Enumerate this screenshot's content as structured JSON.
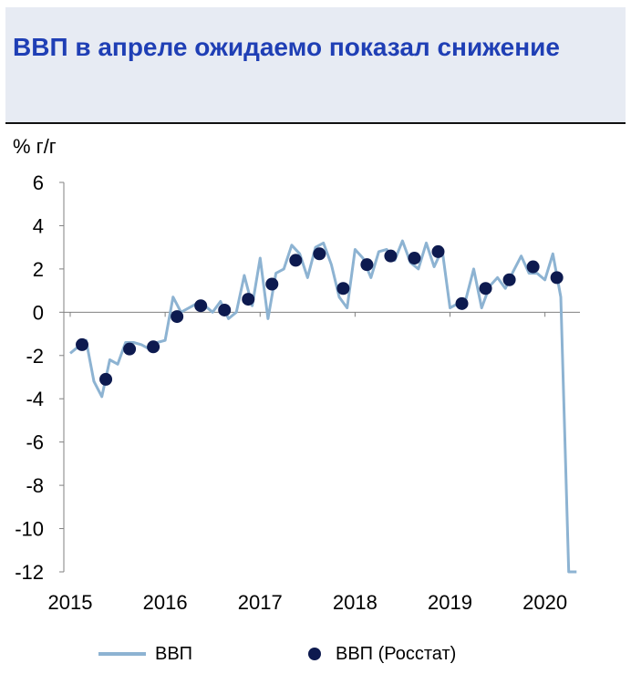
{
  "title": "ВВП в апреле ожидаемо показал снижение",
  "colors": {
    "header_bg": "#e7ebf3",
    "title": "#1f3fb5",
    "line": "#8db3d2",
    "dots": "#0d1a4f"
  },
  "chart_data": {
    "type": "line",
    "ylabel": "% г/г",
    "ylim": [
      -12,
      6
    ],
    "y_ticks": [
      6,
      4,
      2,
      0,
      -2,
      -4,
      -6,
      -8,
      -10,
      -12
    ],
    "x_range": [
      2015.0,
      2020.33
    ],
    "x_ticks": [
      "2015",
      "2016",
      "2017",
      "2018",
      "2019",
      "2020"
    ],
    "grid": false,
    "legend_position": "bottom",
    "series": [
      {
        "name": "ВВП",
        "kind": "line",
        "x": [
          2015.0,
          2015.083,
          2015.167,
          2015.25,
          2015.333,
          2015.417,
          2015.5,
          2015.583,
          2015.667,
          2015.75,
          2015.833,
          2015.917,
          2016.0,
          2016.083,
          2016.167,
          2016.25,
          2016.333,
          2016.417,
          2016.5,
          2016.583,
          2016.667,
          2016.75,
          2016.833,
          2016.917,
          2017.0,
          2017.083,
          2017.167,
          2017.25,
          2017.333,
          2017.417,
          2017.5,
          2017.583,
          2017.667,
          2017.75,
          2017.833,
          2017.917,
          2018.0,
          2018.083,
          2018.167,
          2018.25,
          2018.333,
          2018.417,
          2018.5,
          2018.583,
          2018.667,
          2018.75,
          2018.833,
          2018.917,
          2019.0,
          2019.083,
          2019.167,
          2019.25,
          2019.333,
          2019.417,
          2019.5,
          2019.583,
          2019.667,
          2019.75,
          2019.833,
          2019.917,
          2020.0,
          2020.083,
          2020.167,
          2020.25,
          2020.333
        ],
        "y": [
          -1.9,
          -1.6,
          -1.3,
          -3.2,
          -3.9,
          -2.2,
          -2.4,
          -1.4,
          -1.4,
          -1.5,
          -1.7,
          -1.4,
          -1.3,
          0.7,
          0.0,
          0.2,
          0.4,
          0.3,
          0.0,
          0.5,
          -0.3,
          0.0,
          1.7,
          0.3,
          2.5,
          -0.3,
          1.8,
          2.0,
          3.1,
          2.7,
          1.6,
          3.0,
          3.2,
          2.2,
          0.7,
          0.2,
          2.9,
          2.5,
          1.6,
          2.8,
          2.9,
          2.4,
          3.3,
          2.3,
          2.0,
          3.2,
          2.1,
          2.9,
          0.2,
          0.4,
          0.6,
          2.0,
          0.2,
          1.2,
          1.6,
          1.1,
          1.9,
          2.6,
          1.8,
          1.8,
          1.5,
          2.7,
          0.7,
          -12.0,
          -12.0
        ]
      },
      {
        "name": "ВВП (Росстат)",
        "kind": "markers",
        "x": [
          2015.125,
          2015.375,
          2015.625,
          2015.875,
          2016.125,
          2016.375,
          2016.625,
          2016.875,
          2017.125,
          2017.375,
          2017.625,
          2017.875,
          2018.125,
          2018.375,
          2018.625,
          2018.875,
          2019.125,
          2019.375,
          2019.625,
          2019.875,
          2020.125
        ],
        "y": [
          -1.5,
          -3.1,
          -1.7,
          -1.6,
          -0.2,
          0.3,
          0.1,
          0.6,
          1.3,
          2.4,
          2.7,
          1.1,
          2.2,
          2.6,
          2.5,
          2.8,
          0.4,
          1.1,
          1.5,
          2.1,
          1.6
        ]
      }
    ]
  }
}
